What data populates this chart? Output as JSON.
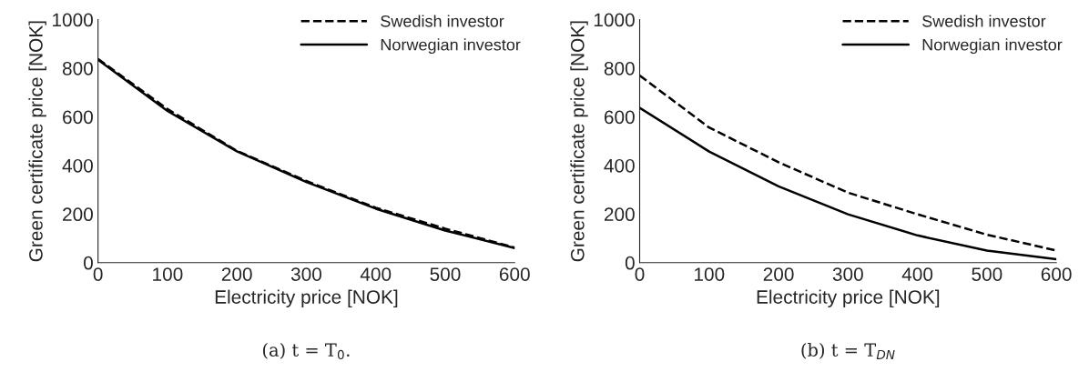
{
  "chart_data": [
    {
      "type": "line",
      "xlabel": "Electricity price [NOK]",
      "ylabel": "Green certificate price [NOK]",
      "x": [
        0,
        100,
        200,
        300,
        400,
        500,
        600
      ],
      "xlim": [
        0,
        600
      ],
      "ylim": [
        0,
        1000
      ],
      "xticks": [
        0,
        100,
        200,
        300,
        400,
        500,
        600
      ],
      "yticks": [
        0,
        200,
        400,
        600,
        800,
        1000
      ],
      "legend": "top right",
      "grid": false,
      "annotations": [
        "(a) t = T$_{0}$."
      ],
      "series": [
        {
          "name": "Swedish investor",
          "color": "#000000",
          "line_style": "dashed",
          "values": [
            838,
            632,
            460,
            336,
            226,
            140,
            62
          ]
        },
        {
          "name": "Norwegian investor",
          "color": "#000000",
          "line_style": "solid",
          "values": [
            835,
            624,
            458,
            332,
            222,
            132,
            60
          ]
        }
      ]
    },
    {
      "type": "line",
      "xlabel": "Electricity price [NOK]",
      "ylabel": "Green certificate price [NOK]",
      "x": [
        0,
        100,
        200,
        300,
        400,
        500,
        600
      ],
      "xlim": [
        0,
        600
      ],
      "ylim": [
        0,
        1000
      ],
      "xticks": [
        0,
        100,
        200,
        300,
        400,
        500,
        600
      ],
      "yticks": [
        0,
        200,
        400,
        600,
        800,
        1000
      ],
      "legend": "top right",
      "grid": false,
      "annotations": [
        "(b) t = T$_{DN}$"
      ],
      "series": [
        {
          "name": "Swedish investor",
          "color": "#000000",
          "line_style": "dashed",
          "values": [
            770,
            556,
            413,
            288,
            199,
            115,
            50
          ]
        },
        {
          "name": "Norwegian investor",
          "color": "#000000",
          "line_style": "solid",
          "values": [
            637,
            457,
            314,
            199,
            112,
            50,
            14
          ]
        }
      ]
    }
  ]
}
